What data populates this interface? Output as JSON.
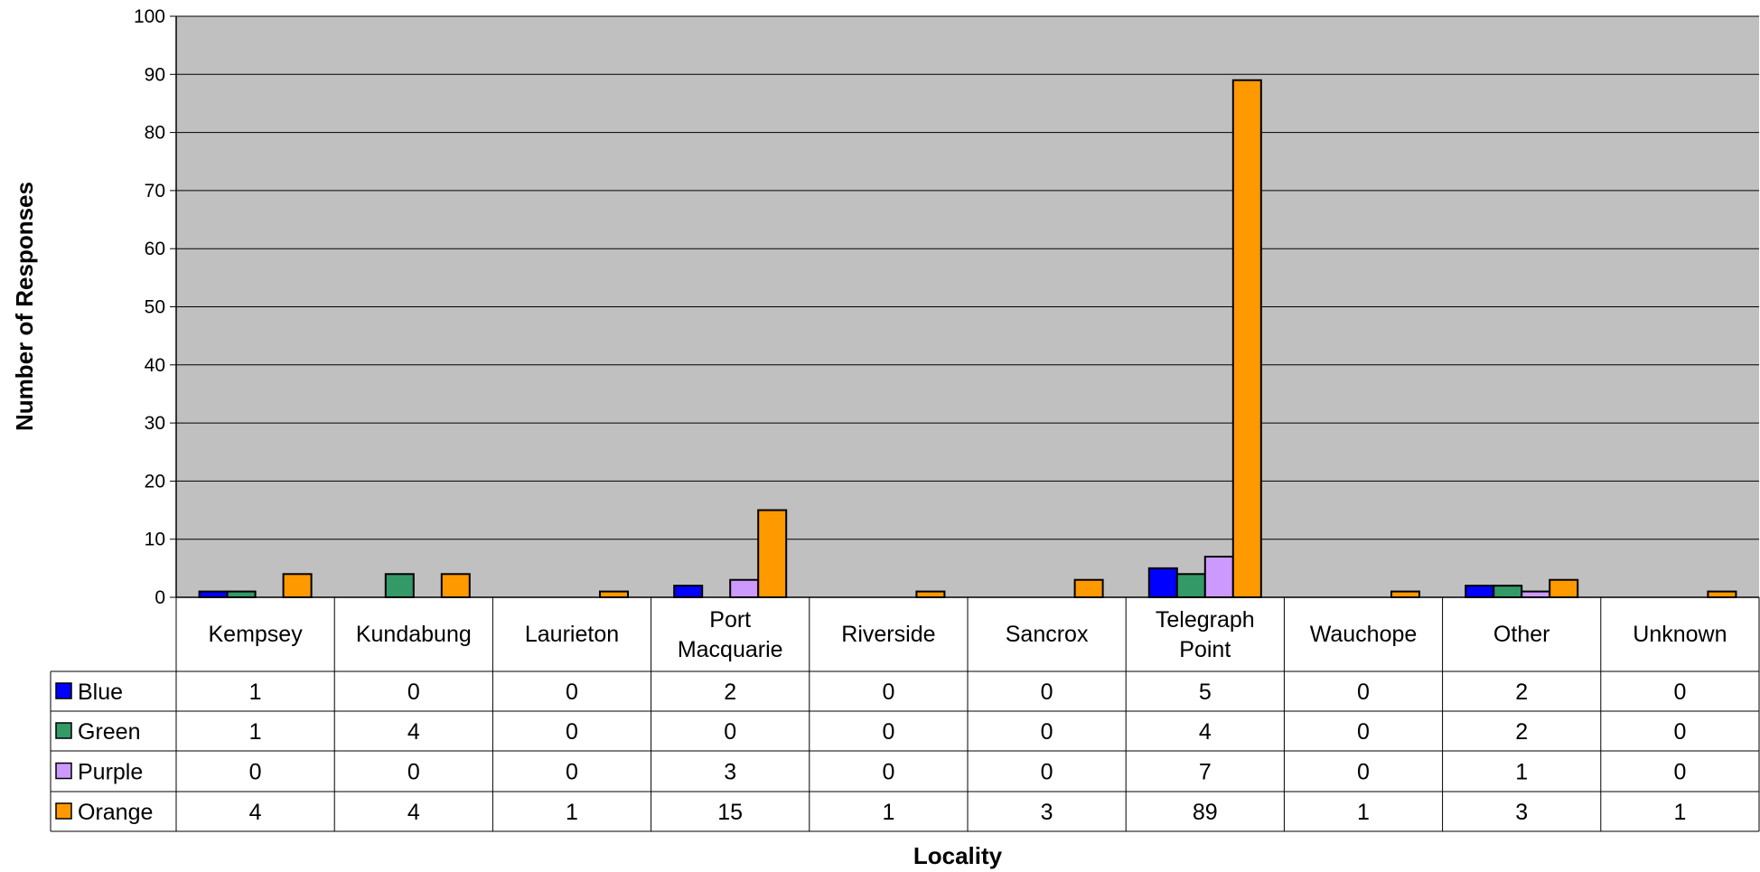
{
  "chart_data": {
    "type": "bar",
    "title": "",
    "xlabel": "Locality",
    "ylabel": "Number of Responses",
    "ylim": [
      0,
      100
    ],
    "yticks": [
      0,
      10,
      20,
      30,
      40,
      50,
      60,
      70,
      80,
      90,
      100
    ],
    "grid": true,
    "legend": "data table",
    "plot_background": "#c0c0c0",
    "categories": [
      [
        "Kempsey"
      ],
      [
        "Kundabung"
      ],
      [
        "Laurieton"
      ],
      [
        "Port",
        "Macquarie"
      ],
      [
        "Riverside"
      ],
      [
        "Sancrox"
      ],
      [
        "Telegraph",
        "Point"
      ],
      [
        "Wauchope"
      ],
      [
        "Other"
      ],
      [
        "Unknown"
      ]
    ],
    "series": [
      {
        "name": "Blue",
        "color": "#0000ff",
        "values": [
          1,
          0,
          0,
          2,
          0,
          0,
          5,
          0,
          2,
          0
        ]
      },
      {
        "name": "Green",
        "color": "#339966",
        "values": [
          1,
          4,
          0,
          0,
          0,
          0,
          4,
          0,
          2,
          0
        ]
      },
      {
        "name": "Purple",
        "color": "#cc99ff",
        "values": [
          0,
          0,
          0,
          3,
          0,
          0,
          7,
          0,
          1,
          0
        ]
      },
      {
        "name": "Orange",
        "color": "#ff9900",
        "values": [
          4,
          4,
          1,
          15,
          1,
          3,
          89,
          1,
          3,
          1
        ]
      }
    ]
  }
}
